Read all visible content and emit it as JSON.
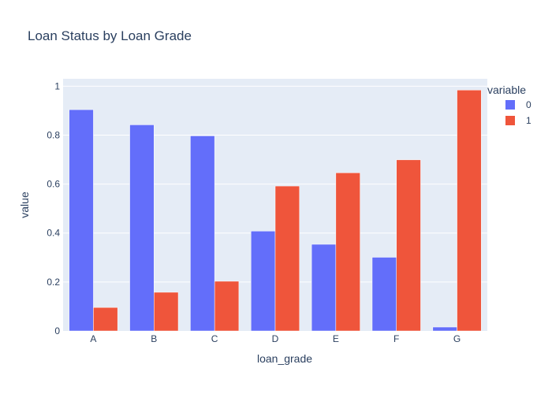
{
  "chart_data": {
    "type": "bar",
    "title": "Loan Status by Loan Grade",
    "xlabel": "loan_grade",
    "ylabel": "value",
    "categories": [
      "A",
      "B",
      "C",
      "D",
      "E",
      "F",
      "G"
    ],
    "series": [
      {
        "name": "0",
        "values": [
          0.904,
          0.842,
          0.797,
          0.408,
          0.354,
          0.301,
          0.016
        ],
        "color": "#636efa"
      },
      {
        "name": "1",
        "values": [
          0.096,
          0.158,
          0.203,
          0.592,
          0.646,
          0.699,
          0.984
        ],
        "color": "#ef553b"
      }
    ],
    "ylim": [
      0,
      1.03
    ],
    "yticks": [
      0,
      0.2,
      0.4,
      0.6,
      0.8,
      1
    ],
    "ytick_labels": [
      "0",
      "0.2",
      "0.4",
      "0.6",
      "0.8",
      "1"
    ],
    "grid": true,
    "plot_background": "#e5ecf6",
    "legend": {
      "title": "variable",
      "position": "top-right"
    }
  }
}
